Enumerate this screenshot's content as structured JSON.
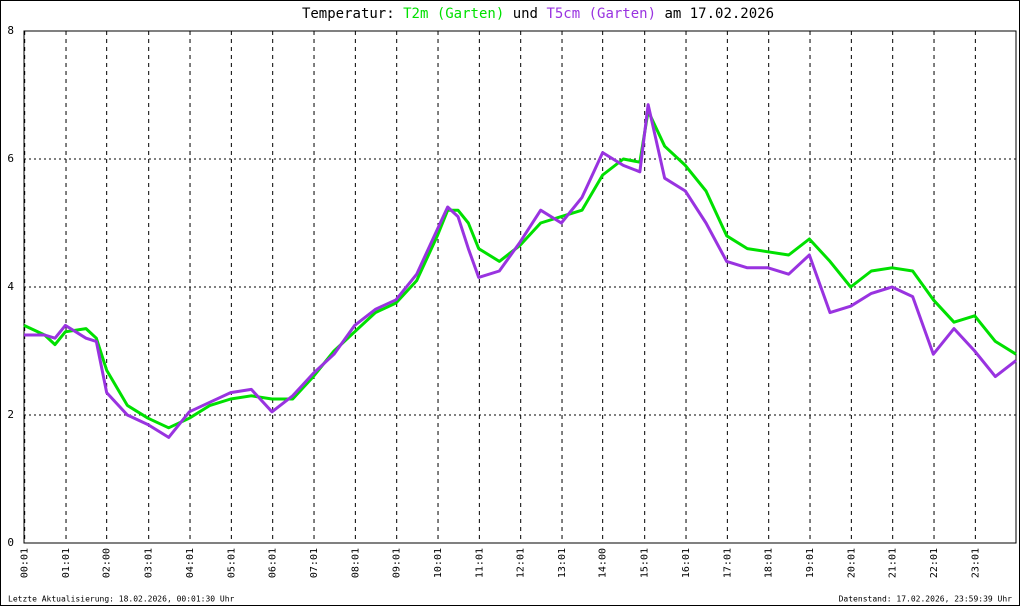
{
  "chart_data": {
    "type": "line",
    "title_parts": [
      "Temperatur:",
      "und",
      "am 17.02.2026"
    ],
    "footer_left": "Letzte Aktualisierung: 18.02.2026, 00:01:30 Uhr",
    "footer_right": "Datenstand: 17.02.2026, 23:59:39 Uhr",
    "x": [
      0,
      30,
      45,
      60,
      90,
      105,
      120,
      150,
      180,
      210,
      240,
      270,
      300,
      330,
      360,
      390,
      420,
      450,
      480,
      510,
      540,
      570,
      600,
      615,
      630,
      645,
      660,
      690,
      720,
      750,
      780,
      810,
      840,
      870,
      894,
      906,
      930,
      960,
      990,
      1020,
      1050,
      1080,
      1110,
      1140,
      1170,
      1200,
      1230,
      1260,
      1290,
      1320,
      1350,
      1380,
      1410,
      1440
    ],
    "series": [
      {
        "name": "T2m (Garten)",
        "color": "#00e000",
        "values": [
          3.4,
          3.25,
          3.1,
          3.3,
          3.35,
          3.2,
          2.7,
          2.15,
          1.95,
          1.8,
          1.95,
          2.15,
          2.25,
          2.3,
          2.25,
          2.25,
          2.6,
          3.0,
          3.3,
          3.6,
          3.75,
          4.1,
          4.8,
          5.2,
          5.2,
          5.0,
          4.6,
          4.4,
          4.65,
          5.0,
          5.1,
          5.2,
          5.75,
          6.0,
          5.95,
          6.75,
          6.2,
          5.9,
          5.5,
          4.8,
          4.6,
          4.55,
          4.5,
          4.75,
          4.4,
          4.0,
          4.25,
          4.3,
          4.25,
          3.8,
          3.45,
          3.55,
          3.15,
          2.95
        ]
      },
      {
        "name": "T5cm (Garten)",
        "color": "#9933e0",
        "values": [
          3.25,
          3.25,
          3.2,
          3.4,
          3.2,
          3.15,
          2.35,
          2.0,
          1.85,
          1.65,
          2.05,
          2.2,
          2.35,
          2.4,
          2.05,
          2.3,
          2.65,
          2.95,
          3.4,
          3.65,
          3.8,
          4.2,
          4.9,
          5.25,
          5.1,
          4.6,
          4.15,
          4.25,
          4.7,
          5.2,
          5.0,
          5.4,
          6.1,
          5.9,
          5.8,
          6.85,
          5.7,
          5.5,
          5.0,
          4.4,
          4.3,
          4.3,
          4.2,
          4.5,
          3.6,
          3.7,
          3.9,
          4.0,
          3.85,
          2.95,
          3.35,
          3.0,
          2.6,
          2.85
        ]
      }
    ],
    "xlim": [
      0,
      1440
    ],
    "xticks": [
      {
        "value": 1,
        "label": "00:01"
      },
      {
        "value": 61,
        "label": "01:01"
      },
      {
        "value": 120,
        "label": "02:00"
      },
      {
        "value": 181,
        "label": "03:01"
      },
      {
        "value": 241,
        "label": "04:01"
      },
      {
        "value": 301,
        "label": "05:01"
      },
      {
        "value": 361,
        "label": "06:01"
      },
      {
        "value": 421,
        "label": "07:01"
      },
      {
        "value": 481,
        "label": "08:01"
      },
      {
        "value": 541,
        "label": "09:01"
      },
      {
        "value": 601,
        "label": "10:01"
      },
      {
        "value": 661,
        "label": "11:01"
      },
      {
        "value": 721,
        "label": "12:01"
      },
      {
        "value": 781,
        "label": "13:01"
      },
      {
        "value": 840,
        "label": "14:00"
      },
      {
        "value": 901,
        "label": "15:01"
      },
      {
        "value": 961,
        "label": "16:01"
      },
      {
        "value": 1021,
        "label": "17:01"
      },
      {
        "value": 1081,
        "label": "18:01"
      },
      {
        "value": 1141,
        "label": "19:01"
      },
      {
        "value": 1201,
        "label": "20:01"
      },
      {
        "value": 1261,
        "label": "21:01"
      },
      {
        "value": 1321,
        "label": "22:01"
      },
      {
        "value": 1381,
        "label": "23:01"
      }
    ],
    "ylim": [
      0,
      8
    ],
    "yticks": [
      0,
      2,
      4,
      6,
      8
    ],
    "grid": true
  }
}
